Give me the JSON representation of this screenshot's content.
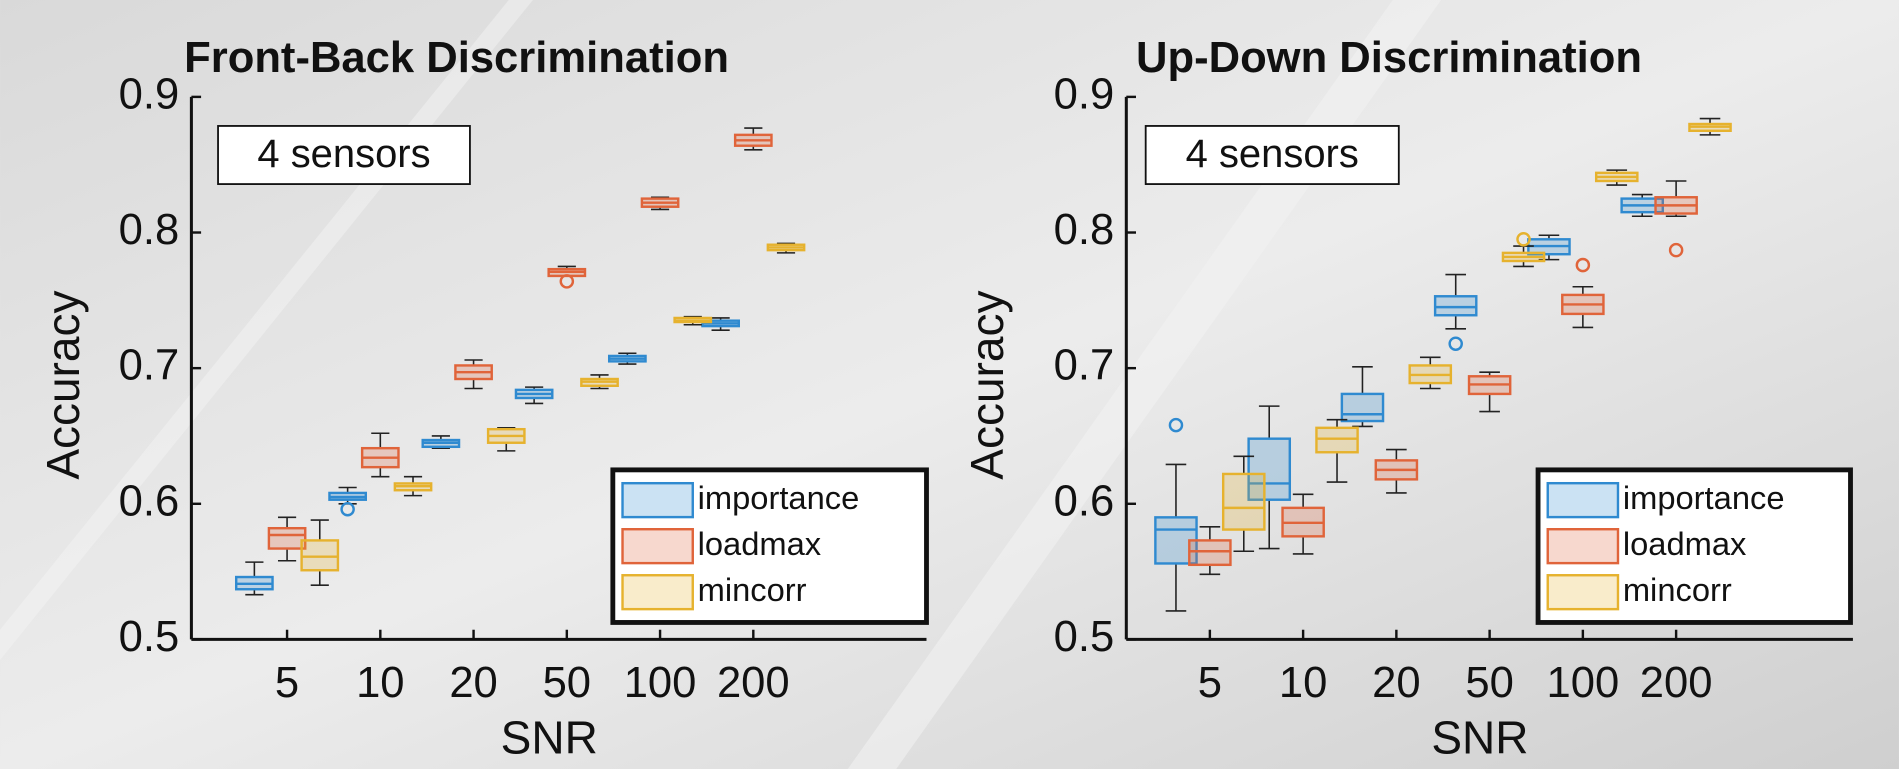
{
  "chart_data": [
    {
      "type": "box",
      "title": "Front-Back Discrimination",
      "annotation": "4 sensors",
      "x_label": "SNR",
      "y_label": "Accuracy",
      "categories": [
        "5",
        "10",
        "20",
        "50",
        "100",
        "200"
      ],
      "ylim": [
        0.5,
        0.9
      ],
      "yticks": [
        0.5,
        0.6,
        0.7,
        0.8,
        0.9
      ],
      "legend": "lower right",
      "series": [
        {
          "name": "importance",
          "color": "#2f8ad0",
          "values": [
            {
              "low": 0.533,
              "q1": 0.537,
              "median": 0.541,
              "q3": 0.546,
              "high": 0.557,
              "outliers": []
            },
            {
              "low": 0.6,
              "q1": 0.603,
              "median": 0.605,
              "q3": 0.608,
              "high": 0.612,
              "outliers": [
                0.596
              ]
            },
            {
              "low": 0.641,
              "q1": 0.642,
              "median": 0.645,
              "q3": 0.647,
              "high": 0.65,
              "outliers": []
            },
            {
              "low": 0.674,
              "q1": 0.678,
              "median": 0.681,
              "q3": 0.684,
              "high": 0.686,
              "outliers": []
            },
            {
              "low": 0.703,
              "q1": 0.705,
              "median": 0.707,
              "q3": 0.709,
              "high": 0.711,
              "outliers": []
            },
            {
              "low": 0.728,
              "q1": 0.731,
              "median": 0.733,
              "q3": 0.735,
              "high": 0.737,
              "outliers": []
            }
          ]
        },
        {
          "name": "loadmax",
          "color": "#e0643a",
          "values": [
            {
              "low": 0.558,
              "q1": 0.567,
              "median": 0.577,
              "q3": 0.582,
              "high": 0.59,
              "outliers": []
            },
            {
              "low": 0.62,
              "q1": 0.627,
              "median": 0.634,
              "q3": 0.641,
              "high": 0.652,
              "outliers": []
            },
            {
              "low": 0.685,
              "q1": 0.692,
              "median": 0.697,
              "q3": 0.702,
              "high": 0.706,
              "outliers": []
            },
            {
              "low": 0.768,
              "q1": 0.768,
              "median": 0.771,
              "q3": 0.773,
              "high": 0.775,
              "outliers": [
                0.764
              ]
            },
            {
              "low": 0.817,
              "q1": 0.819,
              "median": 0.822,
              "q3": 0.825,
              "high": 0.826,
              "outliers": []
            },
            {
              "low": 0.861,
              "q1": 0.864,
              "median": 0.868,
              "q3": 0.872,
              "high": 0.877,
              "outliers": []
            }
          ]
        },
        {
          "name": "mincorr",
          "color": "#e6b22e",
          "values": [
            {
              "low": 0.54,
              "q1": 0.551,
              "median": 0.561,
              "q3": 0.573,
              "high": 0.588,
              "outliers": []
            },
            {
              "low": 0.606,
              "q1": 0.61,
              "median": 0.613,
              "q3": 0.615,
              "high": 0.62,
              "outliers": []
            },
            {
              "low": 0.639,
              "q1": 0.645,
              "median": 0.65,
              "q3": 0.655,
              "high": 0.656,
              "outliers": []
            },
            {
              "low": 0.685,
              "q1": 0.687,
              "median": 0.69,
              "q3": 0.692,
              "high": 0.695,
              "outliers": []
            },
            {
              "low": 0.732,
              "q1": 0.734,
              "median": 0.735,
              "q3": 0.737,
              "high": 0.738,
              "outliers": []
            },
            {
              "low": 0.785,
              "q1": 0.787,
              "median": 0.789,
              "q3": 0.791,
              "high": 0.792,
              "outliers": []
            }
          ]
        }
      ]
    },
    {
      "type": "box",
      "title": "Up-Down Discrimination",
      "annotation": "4 sensors",
      "x_label": "SNR",
      "y_label": "Accuracy",
      "categories": [
        "5",
        "10",
        "20",
        "50",
        "100",
        "200"
      ],
      "ylim": [
        0.5,
        0.9
      ],
      "yticks": [
        0.5,
        0.6,
        0.7,
        0.8,
        0.9
      ],
      "legend": "lower right",
      "series": [
        {
          "name": "importance",
          "color": "#2f8ad0",
          "values": [
            {
              "low": 0.521,
              "q1": 0.556,
              "median": 0.581,
              "q3": 0.59,
              "high": 0.629,
              "outliers": [
                0.658
              ]
            },
            {
              "low": 0.567,
              "q1": 0.603,
              "median": 0.615,
              "q3": 0.648,
              "high": 0.672,
              "outliers": []
            },
            {
              "low": 0.657,
              "q1": 0.661,
              "median": 0.666,
              "q3": 0.681,
              "high": 0.701,
              "outliers": []
            },
            {
              "low": 0.729,
              "q1": 0.739,
              "median": 0.745,
              "q3": 0.753,
              "high": 0.769,
              "outliers": [
                0.718
              ]
            },
            {
              "low": 0.78,
              "q1": 0.784,
              "median": 0.79,
              "q3": 0.795,
              "high": 0.798,
              "outliers": []
            },
            {
              "low": 0.812,
              "q1": 0.815,
              "median": 0.82,
              "q3": 0.825,
              "high": 0.828,
              "outliers": []
            }
          ]
        },
        {
          "name": "loadmax",
          "color": "#e0643a",
          "values": [
            {
              "low": 0.548,
              "q1": 0.555,
              "median": 0.565,
              "q3": 0.573,
              "high": 0.583,
              "outliers": []
            },
            {
              "low": 0.563,
              "q1": 0.576,
              "median": 0.586,
              "q3": 0.597,
              "high": 0.607,
              "outliers": []
            },
            {
              "low": 0.608,
              "q1": 0.618,
              "median": 0.625,
              "q3": 0.632,
              "high": 0.64,
              "outliers": []
            },
            {
              "low": 0.668,
              "q1": 0.681,
              "median": 0.688,
              "q3": 0.694,
              "high": 0.697,
              "outliers": []
            },
            {
              "low": 0.73,
              "q1": 0.74,
              "median": 0.747,
              "q3": 0.754,
              "high": 0.76,
              "outliers": [
                0.776
              ]
            },
            {
              "low": 0.812,
              "q1": 0.814,
              "median": 0.82,
              "q3": 0.826,
              "high": 0.838,
              "outliers": [
                0.787
              ]
            }
          ]
        },
        {
          "name": "mincorr",
          "color": "#e6b22e",
          "values": [
            {
              "low": 0.565,
              "q1": 0.581,
              "median": 0.597,
              "q3": 0.622,
              "high": 0.635,
              "outliers": []
            },
            {
              "low": 0.616,
              "q1": 0.638,
              "median": 0.648,
              "q3": 0.656,
              "high": 0.662,
              "outliers": []
            },
            {
              "low": 0.685,
              "q1": 0.689,
              "median": 0.695,
              "q3": 0.702,
              "high": 0.708,
              "outliers": []
            },
            {
              "low": 0.775,
              "q1": 0.779,
              "median": 0.782,
              "q3": 0.785,
              "high": 0.79,
              "outliers": [
                0.795
              ]
            },
            {
              "low": 0.835,
              "q1": 0.838,
              "median": 0.841,
              "q3": 0.844,
              "high": 0.846,
              "outliers": []
            },
            {
              "low": 0.872,
              "q1": 0.875,
              "median": 0.878,
              "q3": 0.88,
              "high": 0.884,
              "outliers": []
            }
          ]
        }
      ]
    }
  ]
}
